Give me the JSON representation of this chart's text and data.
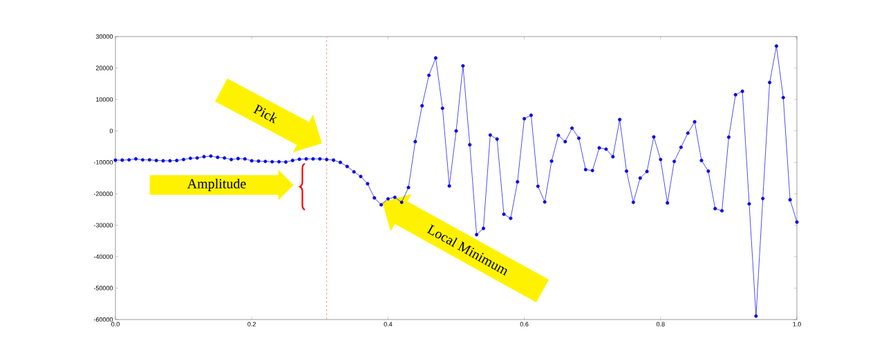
{
  "chart_data": {
    "type": "line",
    "x": [
      0,
      0.01,
      0.02,
      0.03,
      0.04,
      0.05,
      0.06,
      0.07,
      0.08,
      0.09,
      0.1,
      0.11,
      0.12,
      0.13,
      0.14,
      0.15,
      0.16,
      0.17,
      0.18,
      0.19,
      0.2,
      0.21,
      0.22,
      0.23,
      0.24,
      0.25,
      0.26,
      0.27,
      0.28,
      0.29,
      0.3,
      0.31,
      0.32,
      0.33,
      0.34,
      0.35,
      0.36,
      0.37,
      0.38,
      0.39,
      0.4,
      0.41,
      0.42,
      0.43,
      0.44,
      0.45,
      0.46,
      0.47,
      0.48,
      0.49,
      0.5,
      0.51,
      0.52,
      0.53,
      0.54,
      0.55,
      0.56,
      0.57,
      0.58,
      0.59,
      0.6,
      0.61,
      0.62,
      0.63,
      0.64,
      0.65,
      0.66,
      0.67,
      0.68,
      0.69,
      0.7,
      0.71,
      0.72,
      0.73,
      0.74,
      0.75,
      0.76,
      0.77,
      0.78,
      0.79,
      0.8,
      0.81,
      0.82,
      0.83,
      0.84,
      0.85,
      0.86,
      0.87,
      0.88,
      0.89,
      0.9,
      0.91,
      0.92,
      0.93,
      0.94,
      0.95,
      0.96,
      0.97,
      0.98,
      0.99,
      1
    ],
    "series": [
      {
        "color": "#0000ff",
        "values": [
          -9300,
          -9300,
          -9200,
          -8900,
          -9200,
          -9200,
          -9400,
          -9500,
          -9500,
          -9400,
          -9100,
          -8700,
          -8600,
          -8200,
          -8000,
          -8400,
          -8600,
          -9100,
          -8800,
          -8900,
          -9500,
          -9600,
          -9700,
          -9800,
          -9800,
          -9900,
          -9400,
          -9000,
          -8900,
          -8900,
          -8900,
          -9100,
          -9300,
          -10000,
          -11300,
          -13000,
          -14500,
          -16800,
          -21300,
          -23500,
          -21600,
          -21100,
          -22700,
          -18000,
          -3400,
          8000,
          17700,
          23200,
          7200,
          -17500,
          0,
          20700,
          -4400,
          -33000,
          -31000,
          -1300,
          -2600,
          -26500,
          -27800,
          -16200,
          3900,
          5000,
          -17600,
          -22600,
          -9600,
          -1400,
          -3400,
          900,
          -2300,
          -12300,
          -12600,
          -5400,
          -5800,
          -8200,
          3600,
          -12800,
          -22700,
          -15000,
          -12900,
          -1900,
          -9100,
          -22900,
          -9700,
          -5200,
          -700,
          2900,
          -9400,
          -12800,
          -24700,
          -25400,
          -2000,
          11500,
          12600,
          -23200,
          -58900,
          -21500,
          15400,
          27000,
          10600,
          -21900,
          -29000
        ]
      }
    ],
    "xlim": [
      0,
      1
    ],
    "ylim": [
      -60000,
      30000
    ],
    "xticks": [
      {
        "value": 0,
        "label": "0.0"
      },
      {
        "value": 0.2,
        "label": "0.2"
      },
      {
        "value": 0.4,
        "label": "0.4"
      },
      {
        "value": 0.6,
        "label": "0.6"
      },
      {
        "value": 0.8,
        "label": "0.8"
      },
      {
        "value": 1,
        "label": "1.0"
      }
    ],
    "yticks": [
      -60000,
      -50000,
      -40000,
      -30000,
      -20000,
      -10000,
      0,
      10000,
      20000,
      30000
    ],
    "marker": "circle",
    "line_style": "solid",
    "grid": false,
    "ref_lines": [
      {
        "axis": "x",
        "value": 0.31,
        "color": "#ff8080",
        "line_style": "dashed"
      }
    ],
    "annotations": [
      "Pick",
      "Amplitude",
      "Local Minimum"
    ]
  }
}
